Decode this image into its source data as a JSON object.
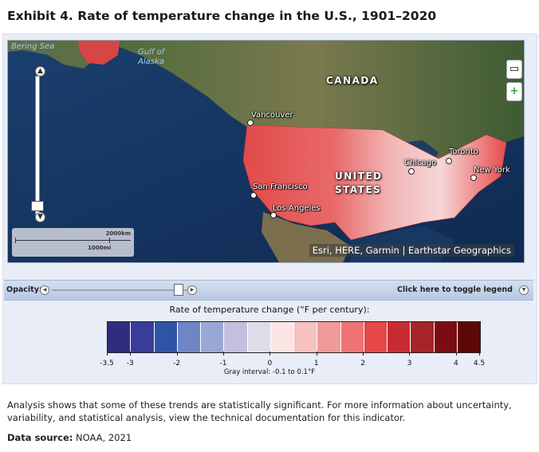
{
  "title": "Exhibit 4. Rate of temperature change in the U.S., 1901–2020",
  "map": {
    "labels": {
      "bering_sea": "Bering Sea",
      "gulf_of_alaska_line1": "Gulf of",
      "gulf_of_alaska_line2": "Alaska",
      "canada": "CANADA",
      "united": "UNITED",
      "states": "STATES"
    },
    "cities": {
      "vancouver": "Vancouver",
      "san_francisco": "San Francisco",
      "los_angeles": "Los Angeles",
      "chicago": "Chicago",
      "toronto": "Toronto",
      "new_york": "New York"
    },
    "scale": {
      "km": "2000km",
      "mi": "1000mi"
    },
    "attribution": "Esri, HERE, Garmin | Earthstar Geographics",
    "zoom_in_icon": "plus-icon",
    "layers_icon": "layers-icon"
  },
  "toolbar": {
    "opacity_label": "Opacity:",
    "toggle_legend_label": "Click here to toggle legend",
    "opacity_level": 0.92
  },
  "legend": {
    "title": "Rate of temperature change (°F per century):",
    "tick_labels": [
      "-3.5",
      "-3",
      "-2",
      "-1",
      "0",
      "1",
      "2",
      "3",
      "4",
      "4.5"
    ],
    "tick_values": [
      -3.5,
      -3,
      -2,
      -1,
      0,
      1,
      2,
      3,
      4,
      4.5
    ],
    "range": [
      -3.5,
      4.5
    ],
    "colors": [
      "#2e2d7e",
      "#3a3c9a",
      "#2f54a5",
      "#6e86c4",
      "#9aa7d6",
      "#c3bfde",
      "#dfdce9",
      "#fbe4e4",
      "#f5c1c1",
      "#f19a9a",
      "#ee7474",
      "#e64747",
      "#c92b33",
      "#a5242a",
      "#7b0d12",
      "#5c0808"
    ],
    "gray_interval": "Gray interval: -0.1 to 0.1°F"
  },
  "text": {
    "analysis": "Analysis shows that some of these trends are statistically significant. For more information about uncertainty, variability, and statistical analysis, view the technical documentation for this indicator.",
    "data_source_label": "Data source:",
    "data_source_value": "NOAA, 2021"
  }
}
